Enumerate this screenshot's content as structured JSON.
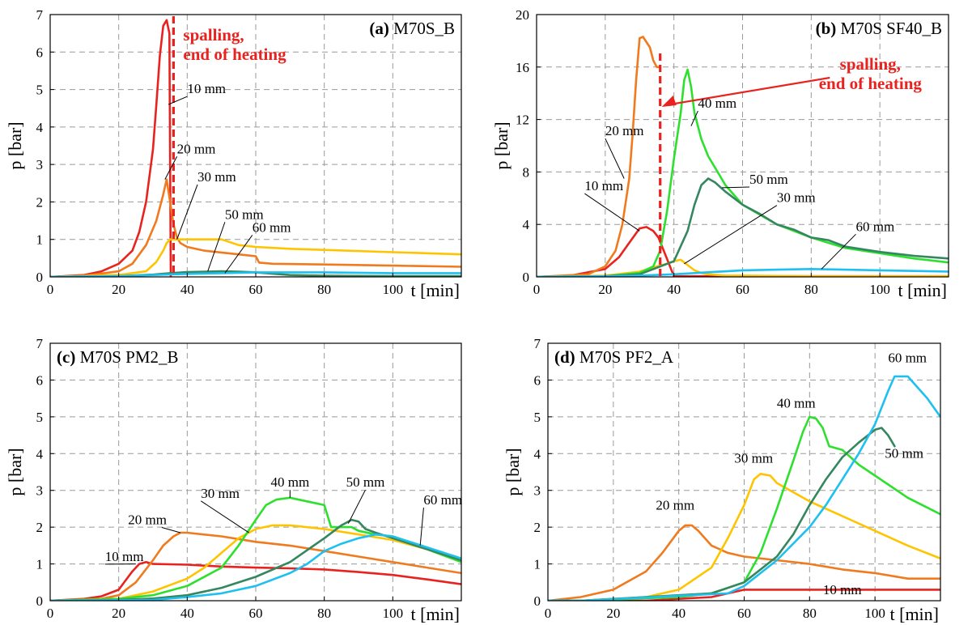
{
  "chart_data": [
    {
      "panel": "(a)",
      "title": "M70S_B",
      "type": "line",
      "xlabel": "t [min]",
      "ylabel": "p [bar]",
      "xlim": [
        0,
        120
      ],
      "ylim": [
        0,
        7
      ],
      "xticks": [
        0,
        20,
        40,
        60,
        80,
        100
      ],
      "yticks": [
        0,
        1,
        2,
        3,
        4,
        5,
        6,
        7
      ],
      "grid": true,
      "series": [
        {
          "name": "10 mm",
          "color": "#e8231f",
          "x": [
            0,
            10,
            15,
            20,
            24,
            26,
            28,
            30,
            31,
            32,
            33,
            34,
            34.8,
            35.2
          ],
          "y": [
            0,
            0.05,
            0.15,
            0.35,
            0.7,
            1.2,
            2.0,
            3.4,
            4.6,
            5.9,
            6.7,
            6.85,
            6.5,
            0
          ]
        },
        {
          "name": "20 mm",
          "color": "#f07a1e",
          "x": [
            0,
            10,
            20,
            24,
            28,
            31,
            33,
            34,
            35,
            36,
            37,
            38,
            40,
            45,
            50,
            55,
            60,
            61,
            65,
            80,
            100,
            120
          ],
          "y": [
            0,
            0.03,
            0.15,
            0.35,
            0.85,
            1.5,
            2.2,
            2.6,
            2.0,
            1.4,
            1.05,
            0.9,
            0.8,
            0.7,
            0.65,
            0.6,
            0.55,
            0.38,
            0.35,
            0.33,
            0.3,
            0.27
          ]
        },
        {
          "name": "30 mm",
          "color": "#ffc400",
          "x": [
            0,
            20,
            28,
            31,
            33,
            34,
            35,
            37,
            40,
            50,
            55,
            60,
            70,
            80,
            100,
            120
          ],
          "y": [
            0,
            0.05,
            0.15,
            0.4,
            0.7,
            0.9,
            1.0,
            1.0,
            1.0,
            1.0,
            0.85,
            0.8,
            0.75,
            0.72,
            0.66,
            0.6
          ]
        },
        {
          "name": "50 mm",
          "color": "#34875e",
          "x": [
            0,
            20,
            30,
            35,
            40,
            50,
            55,
            60,
            70,
            80,
            100,
            120
          ],
          "y": [
            0,
            0.02,
            0.06,
            0.1,
            0.13,
            0.15,
            0.14,
            0.12,
            0.05,
            0.03,
            0.02,
            0.02
          ]
        },
        {
          "name": "60 mm",
          "color": "#1ec0f0",
          "x": [
            0,
            20,
            30,
            40,
            50,
            60,
            70,
            80,
            100,
            120
          ],
          "y": [
            0,
            0.02,
            0.05,
            0.08,
            0.1,
            0.12,
            0.12,
            0.12,
            0.1,
            0.1
          ]
        }
      ],
      "annotation": {
        "lines": [
          "spalling,",
          "end of heating"
        ],
        "x": 36
      }
    },
    {
      "panel": "(b)",
      "title": "M70S SF40_B",
      "type": "line",
      "xlabel": "t [min]",
      "ylabel": "p [bar]",
      "xlim": [
        0,
        120
      ],
      "ylim": [
        0,
        20
      ],
      "xticks": [
        0,
        20,
        40,
        60,
        80,
        100
      ],
      "yticks": [
        0,
        4,
        8,
        12,
        16,
        20
      ],
      "grid": true,
      "series": [
        {
          "name": "10 mm",
          "color": "#e8231f",
          "x": [
            0,
            10,
            20,
            24,
            27,
            30,
            32,
            34,
            35.5,
            40,
            60,
            120
          ],
          "y": [
            0,
            0.1,
            0.6,
            1.5,
            2.6,
            3.7,
            3.8,
            3.5,
            3.0,
            0.05,
            0.05,
            0.05
          ]
        },
        {
          "name": "20 mm",
          "color": "#f07a1e",
          "x": [
            0,
            15,
            20,
            23,
            25,
            27,
            28,
            29,
            30,
            31,
            33,
            34,
            35,
            35.5
          ],
          "y": [
            0,
            0.2,
            0.8,
            2.0,
            4.0,
            7.5,
            11,
            15,
            18.2,
            18.3,
            17.5,
            16.5,
            16.0,
            16.0
          ]
        },
        {
          "name": "30 mm",
          "color": "#ffc400",
          "x": [
            0,
            20,
            30,
            35,
            38,
            40,
            42,
            44,
            46,
            48,
            50,
            55,
            60,
            80,
            120
          ],
          "y": [
            0,
            0.1,
            0.4,
            0.8,
            1.0,
            1.2,
            1.3,
            0.9,
            0.5,
            0.3,
            0.2,
            0.1,
            0.1,
            0.05,
            0.05
          ]
        },
        {
          "name": "40 mm",
          "color": "#2ee02e",
          "x": [
            0,
            20,
            30,
            34,
            36,
            38,
            40,
            42,
            43,
            44,
            45,
            46,
            48,
            50,
            55,
            60,
            70,
            80,
            90,
            100,
            110,
            120
          ],
          "y": [
            0,
            0.05,
            0.3,
            0.8,
            2.0,
            5.0,
            9.0,
            12.5,
            15.0,
            15.8,
            14.5,
            12.5,
            10.5,
            9.2,
            7.0,
            5.5,
            4.0,
            3.0,
            2.2,
            1.8,
            1.4,
            1.1
          ]
        },
        {
          "name": "50 mm",
          "color": "#34875e",
          "x": [
            0,
            20,
            30,
            40,
            44,
            46,
            48,
            50,
            52,
            55,
            60,
            65,
            70,
            75,
            80,
            85,
            90,
            100,
            110,
            120
          ],
          "y": [
            0,
            0.05,
            0.2,
            1.2,
            3.5,
            5.5,
            7.0,
            7.5,
            7.2,
            6.5,
            5.5,
            4.8,
            4.0,
            3.6,
            3.0,
            2.8,
            2.3,
            1.9,
            1.6,
            1.4
          ]
        },
        {
          "name": "60 mm",
          "color": "#1ec0f0",
          "x": [
            0,
            20,
            30,
            40,
            50,
            60,
            70,
            80,
            90,
            100,
            110,
            120
          ],
          "y": [
            0,
            0.05,
            0.1,
            0.2,
            0.35,
            0.5,
            0.55,
            0.6,
            0.55,
            0.5,
            0.45,
            0.4
          ]
        }
      ],
      "annotation": {
        "lines": [
          "spalling,",
          "end of heating"
        ],
        "x": 36
      }
    },
    {
      "panel": "(c)",
      "title": "M70S PM2_B",
      "type": "line",
      "xlabel": "t [min]",
      "ylabel": "p [bar]",
      "xlim": [
        0,
        120
      ],
      "ylim": [
        0,
        7
      ],
      "xticks": [
        0,
        20,
        40,
        60,
        80,
        100
      ],
      "yticks": [
        0,
        1,
        2,
        3,
        4,
        5,
        6,
        7
      ],
      "grid": true,
      "series": [
        {
          "name": "10 mm",
          "color": "#e8231f",
          "x": [
            0,
            10,
            15,
            20,
            22,
            24,
            26,
            28,
            30,
            40,
            50,
            60,
            70,
            80,
            90,
            100,
            110,
            120
          ],
          "y": [
            0,
            0.05,
            0.12,
            0.3,
            0.55,
            0.8,
            1.0,
            1.05,
            1.0,
            0.98,
            0.93,
            0.9,
            0.88,
            0.85,
            0.78,
            0.7,
            0.58,
            0.45
          ]
        },
        {
          "name": "20 mm",
          "color": "#f07a1e",
          "x": [
            0,
            15,
            20,
            25,
            30,
            33,
            36,
            38,
            40,
            50,
            60,
            70,
            80,
            90,
            100,
            110,
            120
          ],
          "y": [
            0,
            0.05,
            0.15,
            0.5,
            1.1,
            1.5,
            1.75,
            1.85,
            1.85,
            1.75,
            1.6,
            1.5,
            1.35,
            1.2,
            1.05,
            0.9,
            0.75
          ]
        },
        {
          "name": "30 mm",
          "color": "#ffc400",
          "x": [
            0,
            20,
            30,
            40,
            45,
            50,
            55,
            60,
            65,
            70,
            80,
            90,
            100,
            110,
            120
          ],
          "y": [
            0,
            0.05,
            0.25,
            0.6,
            0.9,
            1.3,
            1.7,
            1.95,
            2.05,
            2.05,
            1.95,
            1.8,
            1.65,
            1.4,
            1.1
          ]
        },
        {
          "name": "40 mm",
          "color": "#2ee02e",
          "x": [
            0,
            20,
            30,
            40,
            50,
            55,
            60,
            63,
            66,
            70,
            75,
            80,
            82,
            85,
            88,
            90,
            95,
            100,
            110,
            120
          ],
          "y": [
            0,
            0.05,
            0.15,
            0.4,
            0.9,
            1.5,
            2.2,
            2.6,
            2.75,
            2.8,
            2.7,
            2.6,
            2.0,
            2.0,
            2.0,
            1.9,
            1.8,
            1.75,
            1.4,
            1.05
          ]
        },
        {
          "name": "50 mm",
          "color": "#34875e",
          "x": [
            0,
            20,
            30,
            40,
            50,
            60,
            70,
            80,
            85,
            88,
            90,
            92,
            95,
            100,
            110,
            120
          ],
          "y": [
            0,
            0.02,
            0.06,
            0.15,
            0.35,
            0.65,
            1.05,
            1.7,
            2.05,
            2.2,
            2.15,
            1.95,
            1.85,
            1.7,
            1.4,
            1.1
          ]
        },
        {
          "name": "60 mm",
          "color": "#1ec0f0",
          "x": [
            0,
            30,
            40,
            50,
            60,
            70,
            75,
            80,
            85,
            90,
            95,
            100,
            110,
            120
          ],
          "y": [
            0,
            0.02,
            0.1,
            0.2,
            0.4,
            0.75,
            1.0,
            1.35,
            1.55,
            1.7,
            1.8,
            1.75,
            1.45,
            1.15
          ]
        }
      ]
    },
    {
      "panel": "(d)",
      "title": "M70S PF2_A",
      "type": "line",
      "xlabel": "t [min]",
      "ylabel": "p [bar]",
      "xlim": [
        0,
        120
      ],
      "ylim": [
        0,
        7
      ],
      "xticks": [
        0,
        20,
        40,
        60,
        80,
        100
      ],
      "yticks": [
        0,
        1,
        2,
        3,
        4,
        5,
        6,
        7
      ],
      "grid": true,
      "series": [
        {
          "name": "10 mm",
          "color": "#e8231f",
          "x": [
            0,
            10,
            30,
            40,
            50,
            60,
            80,
            120
          ],
          "y": [
            0,
            0,
            0,
            0.05,
            0.1,
            0.3,
            0.3,
            0.3
          ]
        },
        {
          "name": "20 mm",
          "color": "#f07a1e",
          "x": [
            0,
            10,
            20,
            30,
            35,
            40,
            42,
            44,
            46,
            50,
            55,
            60,
            70,
            80,
            90,
            100,
            110,
            120
          ],
          "y": [
            0,
            0.1,
            0.3,
            0.8,
            1.3,
            1.9,
            2.05,
            2.05,
            1.9,
            1.5,
            1.3,
            1.2,
            1.1,
            1.0,
            0.85,
            0.75,
            0.6,
            0.6
          ]
        },
        {
          "name": "30 mm",
          "color": "#ffc400",
          "x": [
            0,
            10,
            30,
            40,
            50,
            55,
            60,
            63,
            65,
            68,
            70,
            80,
            90,
            100,
            110,
            120
          ],
          "y": [
            0,
            0,
            0.1,
            0.3,
            0.9,
            1.7,
            2.6,
            3.3,
            3.45,
            3.4,
            3.2,
            2.7,
            2.3,
            1.9,
            1.5,
            1.15
          ]
        },
        {
          "name": "40 mm",
          "color": "#2ee02e",
          "x": [
            0,
            10,
            40,
            50,
            60,
            65,
            70,
            75,
            78,
            80,
            82,
            84,
            86,
            90,
            95,
            100,
            110,
            120
          ],
          "y": [
            0,
            0,
            0.1,
            0.2,
            0.5,
            1.3,
            2.5,
            3.8,
            4.6,
            5.0,
            4.95,
            4.7,
            4.2,
            4.1,
            3.7,
            3.4,
            2.8,
            2.35
          ]
        },
        {
          "name": "50 mm",
          "color": "#34875e",
          "x": [
            0,
            10,
            50,
            60,
            70,
            75,
            80,
            85,
            90,
            95,
            100,
            102,
            104,
            106
          ],
          "y": [
            0,
            0,
            0.2,
            0.5,
            1.2,
            1.8,
            2.6,
            3.3,
            3.9,
            4.3,
            4.65,
            4.7,
            4.5,
            4.2
          ]
        },
        {
          "name": "60 mm",
          "color": "#1ec0f0",
          "x": [
            0,
            10,
            55,
            60,
            70,
            80,
            85,
            90,
            95,
            100,
            104,
            106,
            108,
            110,
            112,
            116,
            120
          ],
          "y": [
            0,
            0,
            0.2,
            0.4,
            1.1,
            2.0,
            2.6,
            3.3,
            4.0,
            4.8,
            5.7,
            6.1,
            6.1,
            6.1,
            5.9,
            5.5,
            5.0
          ]
        }
      ]
    }
  ]
}
